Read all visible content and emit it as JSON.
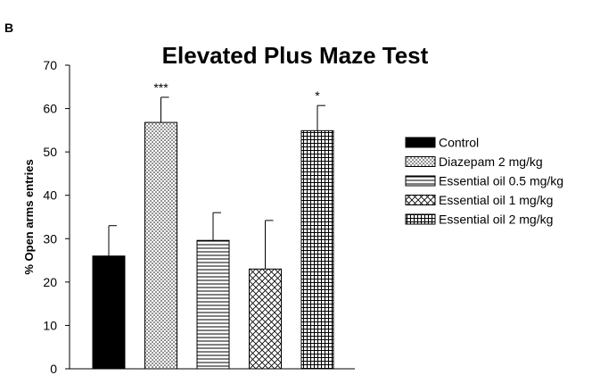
{
  "panel_label": "B",
  "chart_data": {
    "type": "bar",
    "title": "Elevated Plus Maze Test",
    "xlabel": "",
    "ylabel": "% Open arms entries",
    "ylim": [
      0,
      70
    ],
    "yticks": [
      0,
      10,
      20,
      30,
      40,
      50,
      60,
      70
    ],
    "grid": false,
    "legend_position": "right",
    "categories": [
      "Control",
      "Diazepam 2 mg/kg",
      "Essential oil 0.5 mg/kg",
      "Essential oil 1 mg/kg",
      "Essential oil 2 mg/kg"
    ],
    "values": [
      26,
      56.8,
      29.6,
      23,
      54.9
    ],
    "errors": [
      7,
      5.8,
      6.4,
      11.2,
      5.8
    ],
    "significance": [
      "",
      "***",
      "",
      "",
      "*"
    ],
    "patterns": [
      "solid",
      "dots",
      "horizontal-lines",
      "diamond-cross",
      "grid"
    ]
  }
}
